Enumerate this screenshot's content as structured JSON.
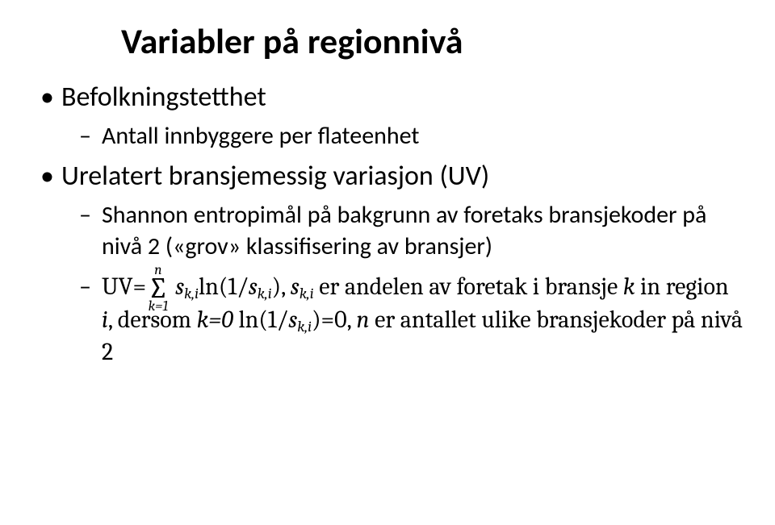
{
  "title": "Variabler på regionnivå",
  "b1": {
    "label": "Befolkningstetthet",
    "sub1": "Antall innbyggere per flateenhet"
  },
  "b2": {
    "label": "Urelatert bransjemessig variasjon (UV)",
    "sub1": "Shannon entropimål på bakgrunn av foretaks bransjekoder på nivå 2 («grov» klassifisering av bransjer)",
    "sub2": {
      "uv_eq": "UV=",
      "sum_top": "n",
      "sum_bot": "k=1",
      "s": "s",
      "ki": "k,i",
      "ln": "ln(1/",
      "close": "), ",
      "er_andel": " er andelen av foretak i bransje ",
      "k": "k",
      "in_region": " in region ",
      "i": "i",
      "dersom": ", dersom ",
      "k0": "k=0",
      "ln1": " ln(1/",
      "eq0": ")=0, ",
      "n": "n",
      "er_antall": " er antallet ulike bransjekoder på nivå 2"
    }
  }
}
